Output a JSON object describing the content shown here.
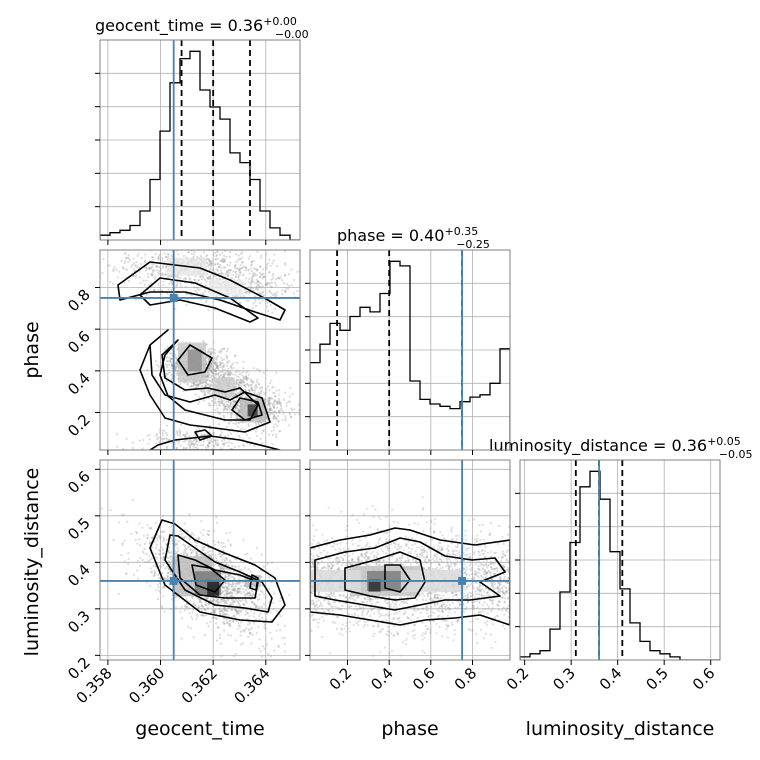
{
  "chart_data": {
    "type": "corner",
    "params": [
      "geocent_time",
      "phase",
      "luminosity_distance"
    ],
    "truth": {
      "geocent_time": 0.3605,
      "phase": 0.75,
      "luminosity_distance": 0.36
    },
    "diagonal_titles": [
      {
        "label": "geocent_time = 0.36",
        "plus": "+0.00",
        "minus": "−0.00"
      },
      {
        "label": "phase = 0.40",
        "plus": "+0.35",
        "minus": "−0.25"
      },
      {
        "label": "luminosity_distance = 0.36",
        "plus": "+0.05",
        "minus": "−0.05"
      }
    ],
    "axes": {
      "geocent_time": {
        "range": [
          0.3577,
          0.3653
        ],
        "ticks": [
          "0.358",
          "0.360",
          "0.362",
          "0.364"
        ],
        "tick_values": [
          0.358,
          0.36,
          0.362,
          0.364
        ]
      },
      "phase": {
        "range": [
          0.02,
          0.98
        ],
        "ticks": [
          "0.2",
          "0.4",
          "0.6",
          "0.8"
        ],
        "tick_values": [
          0.2,
          0.4,
          0.6,
          0.8
        ]
      },
      "luminosity_distance": {
        "range": [
          0.19,
          0.62
        ],
        "ticks": [
          "0.2",
          "0.3",
          "0.4",
          "0.5",
          "0.6"
        ],
        "tick_values": [
          0.2,
          0.3,
          0.4,
          0.5,
          0.6
        ]
      }
    },
    "histograms": {
      "geocent_time": {
        "edges": [
          0.3577,
          0.3653
        ],
        "counts": [
          2,
          3,
          4,
          6,
          12,
          25,
          45,
          65,
          75,
          78,
          62,
          55,
          50,
          36,
          32,
          25,
          12,
          5,
          2,
          0
        ],
        "quantiles": [
          0.3608,
          0.362,
          0.3634
        ]
      },
      "phase": {
        "edges": [
          0.02,
          0.98
        ],
        "counts": [
          38,
          46,
          55,
          52,
          58,
          62,
          60,
          68,
          82,
          80,
          30,
          22,
          20,
          19,
          18,
          21,
          23,
          24,
          29,
          44
        ],
        "quantiles": [
          0.15,
          0.4,
          0.75
        ]
      },
      "luminosity_distance": {
        "edges": [
          0.19,
          0.62
        ],
        "counts": [
          1,
          2,
          3,
          10,
          22,
          38,
          56,
          61,
          52,
          35,
          23,
          12,
          6,
          3,
          2,
          1,
          0,
          0,
          0,
          0
        ],
        "quantiles": [
          0.31,
          0.36,
          0.41
        ]
      }
    },
    "quantile_labels": [
      "0.16",
      "0.5",
      "0.84"
    ],
    "grid": true,
    "colors": {
      "truth": "#4682b4",
      "contour": "#000000",
      "hist": "#000000",
      "grid": "#b0b0b0"
    }
  }
}
